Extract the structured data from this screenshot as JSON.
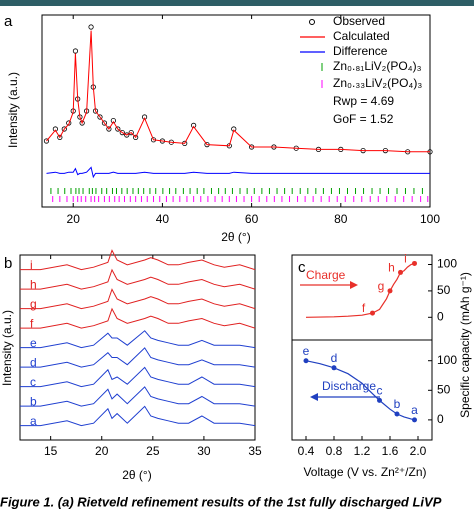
{
  "chart_data": [
    {
      "type": "line",
      "panel": "a",
      "xlabel": "2θ (°)",
      "ylabel": "Intensity (a.u.)",
      "xlim": [
        13,
        100
      ],
      "xticks": [
        20,
        40,
        60,
        80,
        100
      ],
      "ylim": [
        -50,
        110
      ],
      "x": [
        14,
        16,
        17,
        18,
        19,
        20,
        20.5,
        21,
        21.5,
        22,
        23,
        24,
        24.5,
        25,
        26,
        27,
        28,
        29,
        30,
        31,
        32,
        33,
        34,
        36,
        38,
        40,
        42,
        45,
        47,
        50,
        55,
        56,
        60,
        65,
        70,
        75,
        80,
        85,
        90,
        95,
        100
      ],
      "series": [
        {
          "name": "Observed",
          "color": "#000000",
          "marker": "circle",
          "values": [
            5,
            15,
            8,
            15,
            20,
            30,
            80,
            40,
            25,
            20,
            30,
            100,
            50,
            30,
            25,
            20,
            15,
            22,
            15,
            12,
            10,
            12,
            8,
            25,
            6,
            5,
            4,
            3,
            18,
            2,
            1,
            15,
            0,
            0,
            -1,
            -2,
            -2,
            -3,
            -3,
            -4,
            -4
          ]
        },
        {
          "name": "Calculated",
          "color": "#ff0000",
          "values": [
            5,
            14,
            8,
            15,
            19,
            29,
            78,
            40,
            25,
            20,
            29,
            97,
            50,
            30,
            25,
            20,
            15,
            21,
            15,
            12,
            10,
            12,
            8,
            24,
            6,
            5,
            4,
            3,
            17,
            2,
            1,
            14,
            0,
            0,
            -1,
            -2,
            -2,
            -3,
            -3,
            -4,
            -4
          ]
        },
        {
          "name": "Difference",
          "color": "#0000ff",
          "values": [
            -22,
            -21,
            -22,
            -22,
            -21,
            -21,
            -18,
            -23,
            -22,
            -22,
            -21,
            -17,
            -25,
            -22,
            -22,
            -22,
            -22,
            -21,
            -22,
            -22,
            -22,
            -22,
            -22,
            -21,
            -22,
            -22,
            -22,
            -22,
            -21,
            -22,
            -22,
            -21,
            -22,
            -22,
            -22,
            -22,
            -22,
            -22,
            -22,
            -22,
            -22
          ]
        }
      ],
      "reflections": [
        {
          "name": "Zn₀.₈₁LiV₂(PO₄)₃",
          "color": "#00a000",
          "positions": [
            15,
            16.6,
            18.1,
            19.5,
            20.6,
            21.3,
            22.2,
            23.6,
            24.3,
            25.1,
            26.4,
            27.5,
            28.8,
            29.7,
            30.9,
            32.1,
            33.4,
            34.6,
            35.8,
            37.2,
            38.5,
            40.1,
            41.6,
            43,
            44.7,
            46.2,
            47.8,
            49.3,
            51,
            52.6,
            54.1,
            55.7,
            57.4,
            59,
            60.6,
            62.3,
            64,
            65.7,
            67.4,
            69.1,
            70.9,
            72.6,
            74.4,
            76.1,
            77.9,
            79.7,
            81.5,
            83.3,
            85.1,
            87,
            88.8,
            90.7,
            92.6,
            94.5,
            96.4,
            98.3
          ]
        },
        {
          "name": "Zn₀.₃₃LiV₂(PO₄)₃",
          "color": "#ff00ff",
          "positions": [
            15.4,
            17,
            18.6,
            20,
            21,
            21.8,
            22.8,
            24,
            24.8,
            25.7,
            27,
            28.1,
            29.3,
            30.3,
            31.5,
            32.8,
            34,
            35.3,
            36.6,
            38,
            39.4,
            40.9,
            42.4,
            43.9,
            45.5,
            47,
            48.6,
            50.2,
            51.8,
            53.4,
            55,
            56.6,
            58.3,
            60,
            61.7,
            63.4,
            65.1,
            66.8,
            68.5,
            70.3,
            72,
            73.8,
            75.6,
            77.4,
            79.2,
            81,
            82.9,
            84.7,
            86.6,
            88.4,
            90.3,
            92.2,
            94.1,
            96,
            97.9,
            99.5
          ]
        }
      ],
      "annotations": [
        "Rwp = 4.69",
        "GoF = 1.52"
      ]
    },
    {
      "type": "stacked-patterns",
      "panel": "b",
      "xlabel": "2θ (°)",
      "ylabel": "Intensity (a.u.)",
      "xlim": [
        12,
        35
      ],
      "xticks": [
        15,
        20,
        25,
        30,
        35
      ],
      "x": [
        12,
        14,
        16.6,
        18,
        19.2,
        20.6,
        21,
        21.5,
        22.5,
        24.2,
        24.8,
        25.5,
        26.5,
        27.5,
        28.5,
        29.8,
        31,
        32,
        33.5,
        35
      ],
      "series": [
        {
          "name": "a",
          "color": "#1f3fd0",
          "values": [
            1,
            1,
            3,
            1,
            2,
            8,
            4,
            6,
            2,
            9,
            5,
            4,
            3,
            2,
            2,
            5,
            2,
            2,
            2,
            1
          ]
        },
        {
          "name": "b",
          "color": "#1f3fd0",
          "values": [
            1,
            1,
            3,
            1,
            2,
            8,
            4,
            6,
            2,
            9,
            5,
            4,
            3,
            2,
            2,
            5,
            2,
            2,
            2,
            1
          ]
        },
        {
          "name": "c",
          "color": "#1f3fd0",
          "values": [
            1,
            1,
            3,
            1,
            2,
            8,
            4,
            5,
            2,
            9,
            5,
            4,
            3,
            2,
            2,
            5,
            2,
            2,
            2,
            1
          ]
        },
        {
          "name": "d",
          "color": "#1f3fd0",
          "values": [
            1,
            1,
            3,
            1,
            2,
            7,
            5,
            5,
            2,
            9,
            5,
            4,
            3,
            2,
            2,
            4,
            2,
            2,
            2,
            1
          ]
        },
        {
          "name": "e",
          "color": "#1f3fd0",
          "values": [
            1,
            1,
            3,
            1,
            2,
            7,
            5,
            5,
            2,
            8,
            5,
            4,
            3,
            2,
            2,
            4,
            2,
            2,
            2,
            1
          ]
        },
        {
          "name": "f",
          "color": "#e02020",
          "values": [
            1,
            1,
            3,
            1,
            2,
            4,
            9,
            5,
            3,
            5,
            6,
            5,
            3,
            3,
            4,
            5,
            3,
            2,
            3,
            1
          ]
        },
        {
          "name": "g",
          "color": "#e02020",
          "values": [
            1,
            1,
            3,
            1,
            2,
            4,
            9,
            5,
            3,
            5,
            6,
            5,
            3,
            3,
            4,
            5,
            3,
            2,
            3,
            1
          ]
        },
        {
          "name": "h",
          "color": "#e02020",
          "values": [
            1,
            1,
            3,
            1,
            2,
            4,
            9,
            5,
            3,
            5,
            6,
            5,
            3,
            3,
            4,
            5,
            3,
            2,
            3,
            1
          ]
        },
        {
          "name": "i",
          "color": "#e02020",
          "values": [
            1,
            1,
            3,
            1,
            2,
            4,
            9,
            5,
            3,
            5,
            6,
            5,
            3,
            3,
            4,
            5,
            3,
            2,
            3,
            1
          ]
        }
      ]
    },
    {
      "type": "curve",
      "panel": "c",
      "ylabel": "Specific capacity (mAh g⁻¹)",
      "annotation": "Charge",
      "color": "#e8302a",
      "xlim": [
        0.2,
        2.2
      ],
      "ylim": [
        -43,
        118
      ],
      "yticks": [
        0,
        50,
        100
      ],
      "x": [
        0.4,
        0.8,
        1.0,
        1.2,
        1.35,
        1.45,
        1.55,
        1.6,
        1.65,
        1.7,
        1.75,
        1.8,
        1.85,
        1.9,
        1.95
      ],
      "values": [
        0,
        1,
        2,
        4,
        8,
        15,
        35,
        50,
        62,
        72,
        85,
        88,
        95,
        100,
        102
      ],
      "markers": {
        "x": [
          1.35,
          1.6,
          1.75,
          1.95
        ],
        "values": [
          8,
          50,
          85,
          102
        ],
        "labels": [
          "f",
          "g",
          "h",
          "i"
        ]
      }
    },
    {
      "type": "curve",
      "xlabel": "Voltage (V vs. Zn²⁺/Zn)",
      "annotation": "Discharge",
      "color": "#2040c0",
      "xlim": [
        0.2,
        2.2
      ],
      "xticks": [
        0.4,
        0.8,
        1.2,
        1.6,
        {
          "value": 2,
          "label": "2.0"
        }
      ],
      "ylim": [
        -34,
        135
      ],
      "yticks": [
        0,
        50,
        100
      ],
      "x": [
        0.4,
        0.6,
        0.8,
        1.0,
        1.2,
        1.3,
        1.45,
        1.6,
        1.7,
        1.8,
        1.95
      ],
      "values": [
        100,
        95,
        88,
        78,
        62,
        50,
        33,
        18,
        10,
        5,
        0
      ],
      "markers": {
        "x": [
          0.4,
          0.8,
          1.45,
          1.7,
          1.95
        ],
        "values": [
          100,
          88,
          33,
          10,
          0
        ],
        "labels": [
          "e",
          "d",
          "c",
          "b",
          "a"
        ]
      }
    }
  ],
  "caption": "Figure 1. (a) Rietveld refinement results of the 1st fully discharged LiVP"
}
